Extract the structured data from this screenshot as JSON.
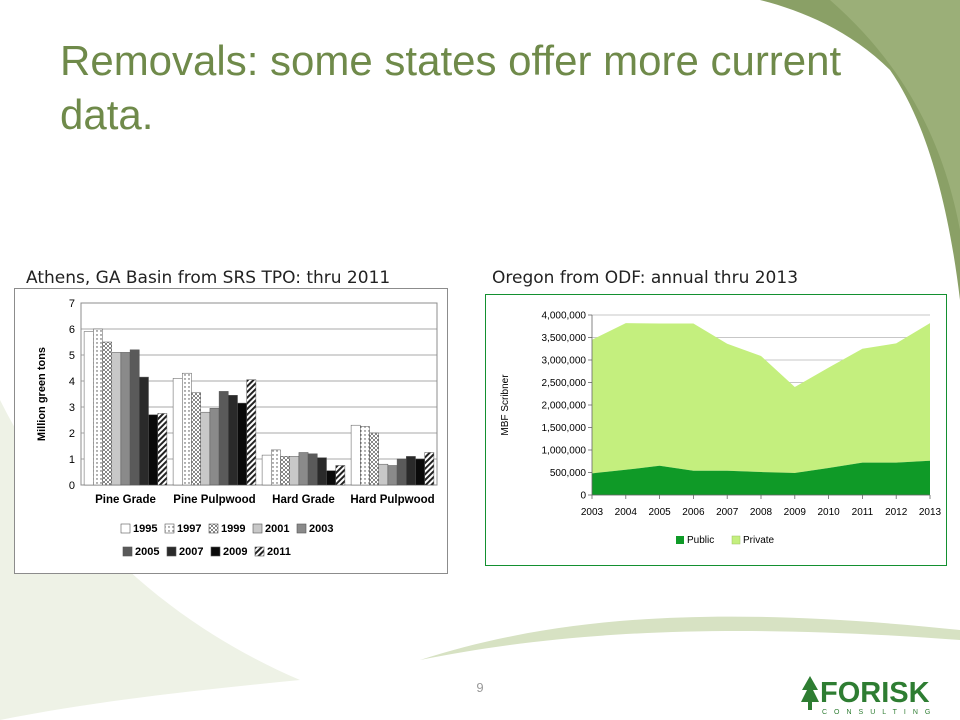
{
  "slide": {
    "title": "Removals: some states offer more current data.",
    "page_number": "9",
    "left_caption": "Athens, GA Basin from SRS TPO: thru 2011",
    "right_caption": "Oregon from ODF: annual thru 2013"
  },
  "logo": {
    "text": "FORISK",
    "subtext": "CONSULTING",
    "icon": "tree-icon",
    "color": "#2e7d32"
  },
  "colors": {
    "title": "#6f8a4a",
    "swoosh": "#8aa066",
    "public": "#0f9a27",
    "private": "#c4ef7e"
  },
  "chart_data": [
    {
      "type": "bar",
      "title": "",
      "xlabel": "",
      "ylabel": "Million green tons",
      "ylim": [
        0,
        7
      ],
      "yticks": [
        0,
        1,
        2,
        3,
        4,
        5,
        6,
        7
      ],
      "grid": true,
      "legend_position": "bottom",
      "categories": [
        "Pine Grade",
        "Pine Pulpwood",
        "Hard Grade",
        "Hard Pulpwood"
      ],
      "series": [
        {
          "name": "1995",
          "values": [
            5.9,
            4.1,
            1.15,
            2.3
          ]
        },
        {
          "name": "1997",
          "values": [
            6.0,
            4.3,
            1.35,
            2.25
          ]
        },
        {
          "name": "1999",
          "values": [
            5.5,
            3.55,
            1.1,
            2.0
          ]
        },
        {
          "name": "2001",
          "values": [
            5.1,
            2.8,
            1.1,
            0.8
          ]
        },
        {
          "name": "2003",
          "values": [
            5.1,
            2.95,
            1.25,
            0.75
          ]
        },
        {
          "name": "2005",
          "values": [
            5.2,
            3.6,
            1.2,
            1.0
          ]
        },
        {
          "name": "2007",
          "values": [
            4.15,
            3.45,
            1.05,
            1.1
          ]
        },
        {
          "name": "2009",
          "values": [
            2.7,
            3.15,
            0.55,
            1.0
          ]
        },
        {
          "name": "2011",
          "values": [
            2.75,
            4.05,
            0.75,
            1.25
          ]
        }
      ]
    },
    {
      "type": "area",
      "stacked": true,
      "title": "",
      "xlabel": "",
      "ylabel": "MBF Scribner",
      "ylim": [
        0,
        4000000
      ],
      "yticks": [
        "0",
        "500,000",
        "1,000,000",
        "1,500,000",
        "2,000,000",
        "2,500,000",
        "3,000,000",
        "3,500,000",
        "4,000,000"
      ],
      "grid": true,
      "legend_position": "bottom",
      "x": [
        "2003",
        "2004",
        "2005",
        "2006",
        "2007",
        "2008",
        "2009",
        "2010",
        "2011",
        "2012",
        "2013"
      ],
      "series": [
        {
          "name": "Public",
          "values": [
            480000,
            560000,
            650000,
            540000,
            540000,
            510000,
            490000,
            600000,
            720000,
            720000,
            760000
          ]
        },
        {
          "name": "Private",
          "values": [
            2970000,
            3260000,
            3160000,
            3270000,
            2820000,
            2580000,
            1910000,
            2230000,
            2530000,
            2650000,
            3060000
          ]
        }
      ]
    }
  ]
}
